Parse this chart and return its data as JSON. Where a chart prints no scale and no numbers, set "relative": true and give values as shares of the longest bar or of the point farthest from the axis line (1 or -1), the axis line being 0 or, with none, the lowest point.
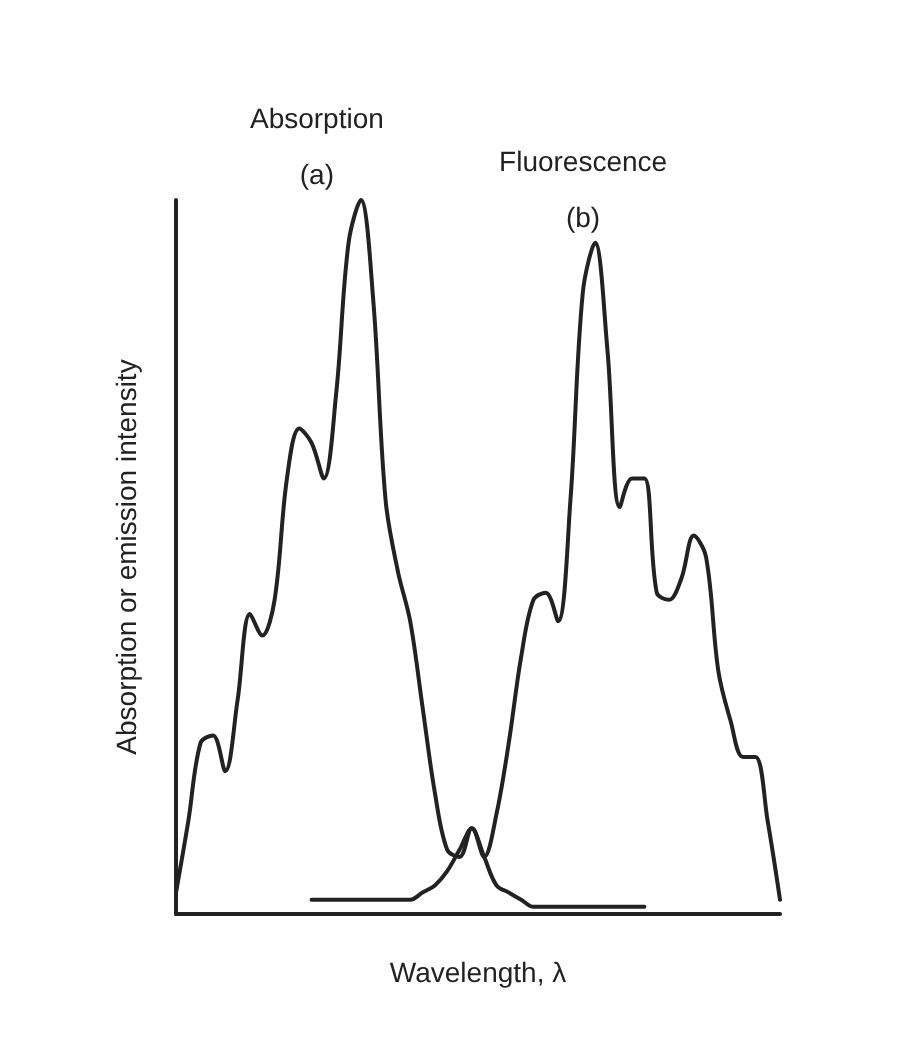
{
  "chart_data": {
    "type": "line",
    "relative": true,
    "xlabel": "Wavelength, λ",
    "ylabel": "Absorption or emission intensity",
    "categories": [
      null,
      null,
      null,
      null,
      null,
      null,
      null,
      null,
      null,
      null,
      null,
      null,
      null,
      null,
      null,
      null,
      null,
      null,
      null,
      null,
      null,
      null,
      null,
      null,
      null,
      null,
      null,
      null,
      null,
      null,
      null,
      null,
      null,
      null,
      null,
      null,
      null,
      null,
      null,
      null,
      null,
      null,
      null,
      null,
      null,
      null,
      null,
      null,
      null,
      null
    ],
    "series": [
      {
        "name": "Absorption",
        "color": "#222222",
        "values": [
          0.03,
          0.13,
          0.24,
          0.25,
          0.2,
          0.3,
          0.42,
          0.39,
          0.44,
          0.61,
          0.68,
          0.66,
          0.61,
          0.73,
          0.94,
          1.0,
          0.86,
          0.58,
          0.48,
          0.41,
          0.29,
          0.17,
          0.09,
          0.08,
          0.12,
          0.08,
          0.04,
          0.03,
          0.02,
          0.01,
          0.01,
          0.01,
          0.01,
          0.01,
          0.01,
          0.01,
          0.01,
          0.01,
          0.01,
          null,
          null,
          null,
          null,
          null,
          null,
          null,
          null,
          null,
          null,
          null
        ]
      },
      {
        "name": "Fluorescence",
        "color": "#222222",
        "values": [
          null,
          null,
          null,
          null,
          null,
          null,
          null,
          null,
          null,
          null,
          null,
          0.02,
          0.02,
          0.02,
          0.02,
          0.02,
          0.02,
          0.02,
          0.02,
          0.02,
          0.03,
          0.04,
          0.06,
          0.09,
          0.12,
          0.08,
          0.14,
          0.24,
          0.36,
          0.44,
          0.45,
          0.41,
          0.58,
          0.87,
          0.94,
          0.79,
          0.57,
          0.61,
          0.61,
          0.45,
          0.44,
          0.47,
          0.53,
          0.5,
          0.34,
          0.27,
          0.22,
          0.22,
          0.13,
          0.02
        ]
      }
    ],
    "annotations": [
      "(a)",
      "(b)"
    ],
    "grid": false,
    "legend": false,
    "marker": "none",
    "line_style": "solid"
  }
}
